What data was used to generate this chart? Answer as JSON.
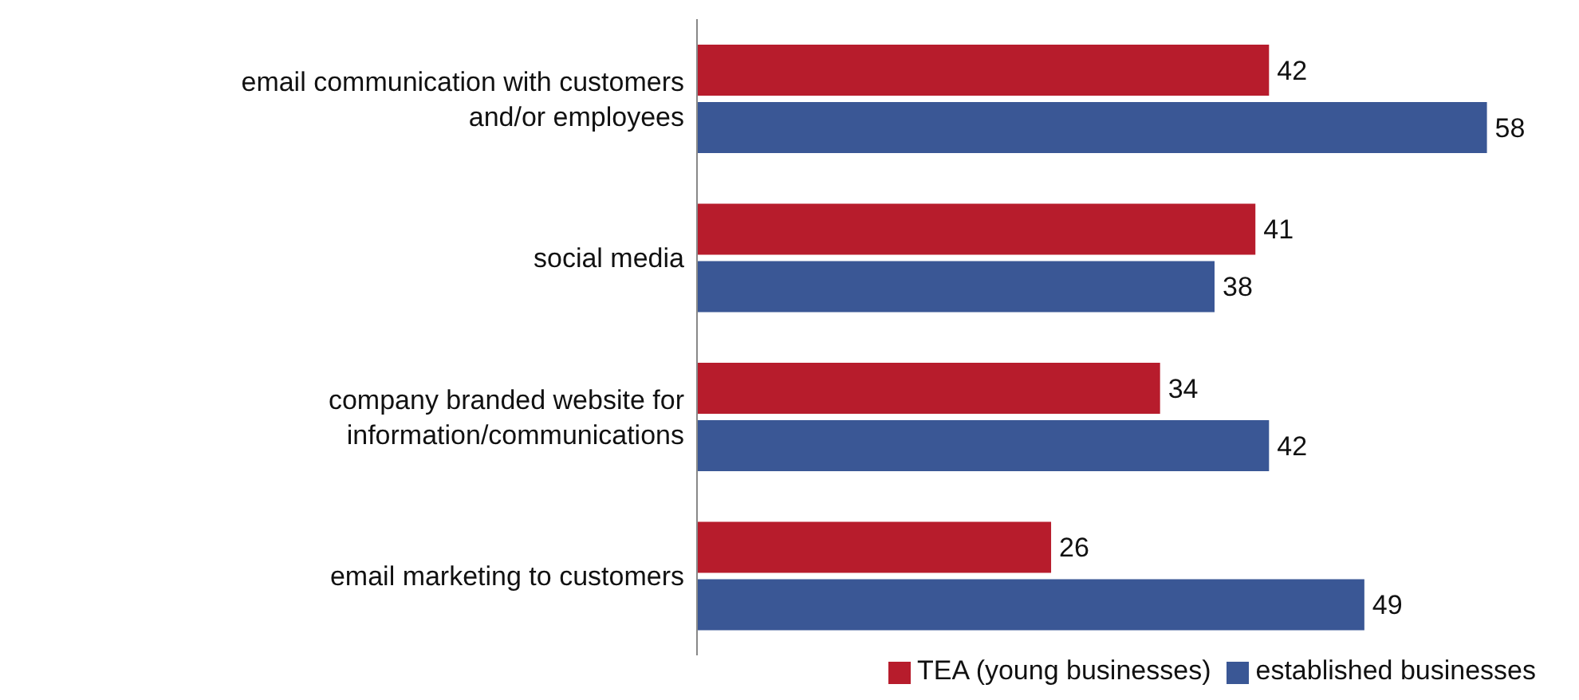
{
  "chart_data": {
    "type": "bar",
    "orientation": "horizontal",
    "categories": [
      "email communication with customers and/or employees",
      "social media",
      "company branded website for information/communications",
      "email marketing to customers"
    ],
    "series": [
      {
        "name": "TEA (young businesses)",
        "color": "#b71c2c",
        "values": [
          42,
          41,
          34,
          26
        ]
      },
      {
        "name": "established businesses",
        "color": "#3a5795",
        "values": [
          58,
          38,
          42,
          49
        ]
      }
    ],
    "data_labels": true,
    "legend": "bottom",
    "grid": false
  }
}
